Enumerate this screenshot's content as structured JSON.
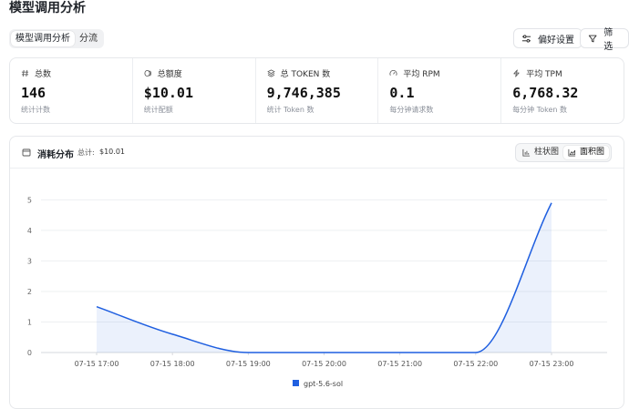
{
  "page": {
    "title": "模型调用分析"
  },
  "tabs": [
    {
      "label": "模型调用分析",
      "active": true
    },
    {
      "label": "分流",
      "active": false
    }
  ],
  "actions": {
    "preferences_label": "偏好设置",
    "filter_label": "筛选"
  },
  "stats": [
    {
      "icon": "hash-icon",
      "label": "总数",
      "value": "146",
      "sub": "统计计数"
    },
    {
      "icon": "coin-icon",
      "label": "总额度",
      "value": "$10.01",
      "sub": "统计配额"
    },
    {
      "icon": "layers-icon",
      "label": "总 TOKEN 数",
      "value": "9,746,385",
      "sub": "统计 Token 数"
    },
    {
      "icon": "gauge-icon",
      "label": "平均 RPM",
      "value": "0.1",
      "sub": "每分钟请求数"
    },
    {
      "icon": "lightning-icon",
      "label": "平均 TPM",
      "value": "6,768.32",
      "sub": "每分钟 Token 数"
    }
  ],
  "chart_card": {
    "title": "消耗分布",
    "total_label": "总计:",
    "total_value": "$10.01",
    "view_bar_label": "柱状图",
    "view_area_label": "面积图",
    "active_view": "area"
  },
  "chart_data": {
    "type": "area",
    "x": [
      "07-15 17:00",
      "07-15 18:00",
      "07-15 19:00",
      "07-15 20:00",
      "07-15 21:00",
      "07-15 22:00",
      "07-15 23:00"
    ],
    "series": [
      {
        "name": "gpt-5.6-sol",
        "values": [
          1.5,
          0.6,
          0,
          0,
          0,
          0,
          4.9
        ],
        "color": "#1f5fe0"
      }
    ],
    "y_ticks": [
      0,
      1,
      2,
      3,
      4,
      5
    ],
    "ylim": [
      0,
      5.4
    ],
    "grid": true,
    "legend_position": "bottom"
  }
}
